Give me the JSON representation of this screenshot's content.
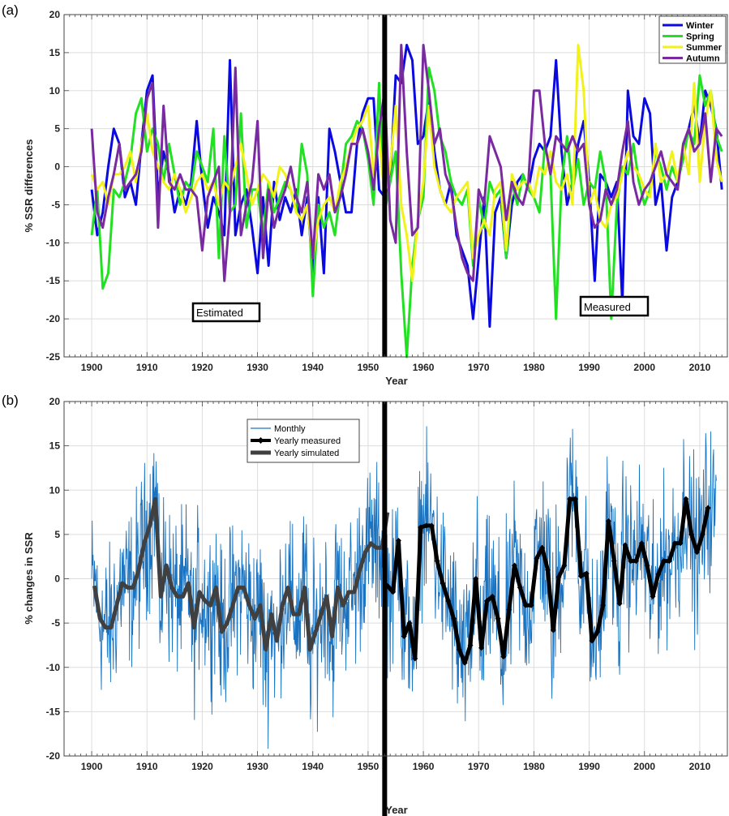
{
  "panel_a": {
    "label": "(a)",
    "ylabel": "% SSR differences",
    "xlabel": "Year",
    "annotations": [
      "Estimated",
      "Measured"
    ],
    "divider_year": 1953
  },
  "panel_b": {
    "label": "(b)",
    "ylabel": "% changes in SSR",
    "xlabel": "Year",
    "divider_year": 1953
  },
  "colors": {
    "winter": "#0a0ae0",
    "spring": "#22e022",
    "summer": "#f2f21a",
    "autumn": "#7a2aa0",
    "monthly": "#1a73c0",
    "yearly_measured": "#000000",
    "yearly_simulated": "#404040",
    "divider": "#000000",
    "grid": "#dddddd"
  },
  "chart_data": [
    {
      "type": "line",
      "panel": "(a)",
      "xlabel": "Year",
      "ylabel": "% SSR differences",
      "xlim": [
        1895,
        2015
      ],
      "ylim": [
        -25,
        20
      ],
      "xticks": [
        1900,
        1910,
        1920,
        1930,
        1940,
        1950,
        1960,
        1970,
        1980,
        1990,
        2000,
        2010
      ],
      "yticks": [
        -25,
        -20,
        -15,
        -10,
        -5,
        0,
        5,
        10,
        15,
        20
      ],
      "grid": true,
      "legend_position": "top-right",
      "x_start": 1900,
      "series": [
        {
          "name": "Winter",
          "color": "#0a0ae0",
          "values": [
            -3,
            -9,
            -6,
            0,
            5,
            3,
            -4,
            -2,
            -5,
            3,
            10,
            12,
            -4,
            2,
            -1,
            -6,
            -3,
            -5,
            -2,
            6,
            -2,
            -8,
            -4,
            -6,
            -9,
            14,
            -9,
            -5,
            -3,
            -8,
            -14,
            -4,
            -13,
            -2,
            -7,
            -4,
            -6,
            -3,
            -9,
            -4,
            -14,
            -4,
            -14,
            5,
            2,
            -2,
            -6,
            -6,
            3,
            7,
            9,
            9,
            -3,
            -4,
            -2,
            12,
            11,
            16,
            14,
            3,
            4,
            9,
            2,
            -3,
            -5,
            -2,
            -9,
            -11,
            -13,
            -20,
            -12,
            -4,
            -21,
            -6,
            -4,
            -12,
            -5,
            -2,
            -1,
            -3,
            1,
            3,
            2,
            4,
            14,
            2,
            -5,
            -2,
            3,
            6,
            -2,
            -15,
            -1,
            -2,
            -4,
            -2,
            -18,
            10,
            4,
            3,
            9,
            7,
            -5,
            -2,
            -11,
            -4,
            -2,
            2,
            5,
            8,
            3,
            10,
            8,
            5,
            -3
          ],
          "label_color": "#0a0ae0"
        },
        {
          "name": "Spring",
          "color": "#22e022",
          "values": [
            -9,
            -3,
            -16,
            -14,
            -3,
            -4,
            -2,
            1,
            7,
            9,
            2,
            5,
            3,
            -2,
            3,
            -1,
            -5,
            -2,
            -3,
            2,
            0,
            -2,
            5,
            -12,
            4,
            -6,
            -5,
            7,
            -8,
            -3,
            -3,
            -9,
            -2,
            -6,
            -4,
            -2,
            -3,
            -6,
            3,
            -1,
            -17,
            -5,
            -8,
            -6,
            -9,
            -3,
            3,
            4,
            6,
            5,
            1,
            -5,
            11,
            -6,
            -2,
            2,
            -14,
            -25,
            -13,
            -7,
            -4,
            13,
            10,
            4,
            2,
            -2,
            -4,
            -5,
            -3,
            -13,
            -4,
            -8,
            -2,
            -4,
            -3,
            -12,
            -2,
            -5,
            -1,
            -3,
            -4,
            -6,
            3,
            -1,
            -20,
            -2,
            4,
            -3,
            1,
            -5,
            -2,
            -3,
            2,
            -2,
            -20,
            -5,
            0,
            -1,
            3,
            -2,
            -5,
            -3,
            2,
            0,
            -3,
            0,
            -2,
            1,
            5,
            3,
            12,
            8,
            10,
            4,
            2
          ],
          "label_color": "#22e022"
        },
        {
          "name": "Summer",
          "color": "#f2f21a",
          "values": [
            -1,
            -3,
            -2,
            -5,
            -1,
            -1,
            0,
            2,
            -2,
            3,
            7,
            2,
            0,
            -2,
            -3,
            -1,
            -3,
            -6,
            -4,
            -2,
            -1,
            -3,
            -2,
            -5,
            -2,
            -3,
            0,
            3,
            -1,
            -5,
            -3,
            -1,
            -2,
            -4,
            0,
            -1,
            -3,
            -6,
            -7,
            -5,
            -12,
            -7,
            -5,
            -4,
            -6,
            -2,
            0,
            3,
            5,
            6,
            8,
            -1,
            4,
            -4,
            0,
            8,
            -5,
            -9,
            -15,
            -7,
            -2,
            8,
            0,
            -3,
            -5,
            -6,
            -4,
            -3,
            -2,
            -12,
            -9,
            -7,
            -9,
            -3,
            -2,
            -11,
            -1,
            -3,
            -2,
            -2,
            -4,
            0,
            -1,
            2,
            -2,
            -3,
            -1,
            -5,
            16,
            10,
            -5,
            -3,
            -7,
            -8,
            -5,
            -4,
            -1,
            2,
            0,
            -1,
            -3,
            -4,
            3,
            -2,
            -1,
            2,
            -2,
            3,
            -1,
            11,
            -2,
            6,
            10,
            1,
            -2
          ],
          "label_color": "#e0c000"
        },
        {
          "name": "Autumn",
          "color": "#7a2aa0",
          "values": [
            5,
            -6,
            -8,
            -4,
            -1,
            3,
            -3,
            -2,
            -1,
            2,
            9,
            11,
            -8,
            8,
            -2,
            -3,
            -1,
            -3,
            -3,
            -4,
            -11,
            -4,
            -2,
            0,
            -15,
            -6,
            13,
            -9,
            -5,
            -2,
            6,
            -12,
            -3,
            -8,
            -5,
            -3,
            0,
            -4,
            -6,
            -2,
            -12,
            -1,
            -3,
            -1,
            -6,
            -4,
            -1,
            3,
            3,
            5,
            2,
            -3,
            5,
            10,
            -7,
            -10,
            16,
            2,
            -9,
            -8,
            16,
            10,
            3,
            5,
            -1,
            -3,
            -8,
            -12,
            -14,
            -15,
            -3,
            -5,
            4,
            2,
            0,
            -7,
            -2,
            -4,
            -5,
            -2,
            10,
            10,
            3,
            -1,
            4,
            3,
            2,
            4,
            2,
            3,
            -5,
            -8,
            -7,
            -3,
            -5,
            -3,
            2,
            6,
            -2,
            -5,
            -3,
            -2,
            0,
            2,
            -1,
            -2,
            -3,
            3,
            5,
            2,
            3,
            7,
            -2,
            5,
            4
          ],
          "label_color": "#7a2aa0"
        }
      ]
    },
    {
      "type": "line",
      "panel": "(b)",
      "xlabel": "Year",
      "ylabel": "% changes in SSR",
      "xlim": [
        1895,
        2015
      ],
      "ylim": [
        -20,
        20
      ],
      "xticks": [
        1900,
        1910,
        1920,
        1930,
        1940,
        1950,
        1960,
        1970,
        1980,
        1990,
        2000,
        2010
      ],
      "yticks": [
        -20,
        -15,
        -10,
        -5,
        0,
        5,
        10,
        15,
        20
      ],
      "grid": true,
      "legend_position": "top-left",
      "series": [
        {
          "name": "Monthly",
          "color": "#1a73c0",
          "style": "thin",
          "x_start": 1900,
          "x_end": 2013,
          "amplitude": 13
        },
        {
          "name": "Yearly measured",
          "color": "#000000",
          "style": "thick-marker",
          "x_start": 1953,
          "values": [
            -0.8,
            -1.5,
            4.3,
            -6.5,
            -5,
            -9,
            5.8,
            6,
            6,
            2,
            -0.5,
            -2.5,
            -4.5,
            -8,
            -9.5,
            -7.5,
            0,
            -7.8,
            -2.5,
            -2,
            -4.5,
            -8.8,
            -3.5,
            1.5,
            -1,
            -3,
            -3,
            2.3,
            3.5,
            1,
            -5.8,
            0.2,
            1.5,
            9,
            9,
            0.3,
            0.6,
            -7,
            -6,
            -3,
            6.5,
            2,
            -2.8,
            3.8,
            2,
            2,
            4,
            1.5,
            -2,
            0.5,
            2,
            2,
            4,
            4,
            9,
            5,
            3,
            5,
            8
          ]
        },
        {
          "name": "Yearly simulated",
          "color": "#404040",
          "style": "thick",
          "x_start": 1900,
          "values": [
            -0.8,
            -4.5,
            -5.5,
            -5.5,
            -3,
            -0.5,
            -1,
            -1,
            1,
            4,
            6,
            9,
            -2,
            1.5,
            -1,
            -2,
            -2,
            -0.5,
            -5.5,
            -1.5,
            -2.5,
            -3,
            -1,
            -6,
            -5,
            -3,
            -1,
            -1,
            -3,
            -4.5,
            -3,
            -8,
            -4,
            -7,
            -3,
            -1,
            -4,
            -4,
            -1,
            -8,
            -6,
            -4,
            -2,
            -6.5,
            -1,
            -3,
            -1.5,
            -1.5,
            1,
            3,
            4,
            3.5,
            3.5,
            7.5
          ]
        }
      ]
    }
  ]
}
